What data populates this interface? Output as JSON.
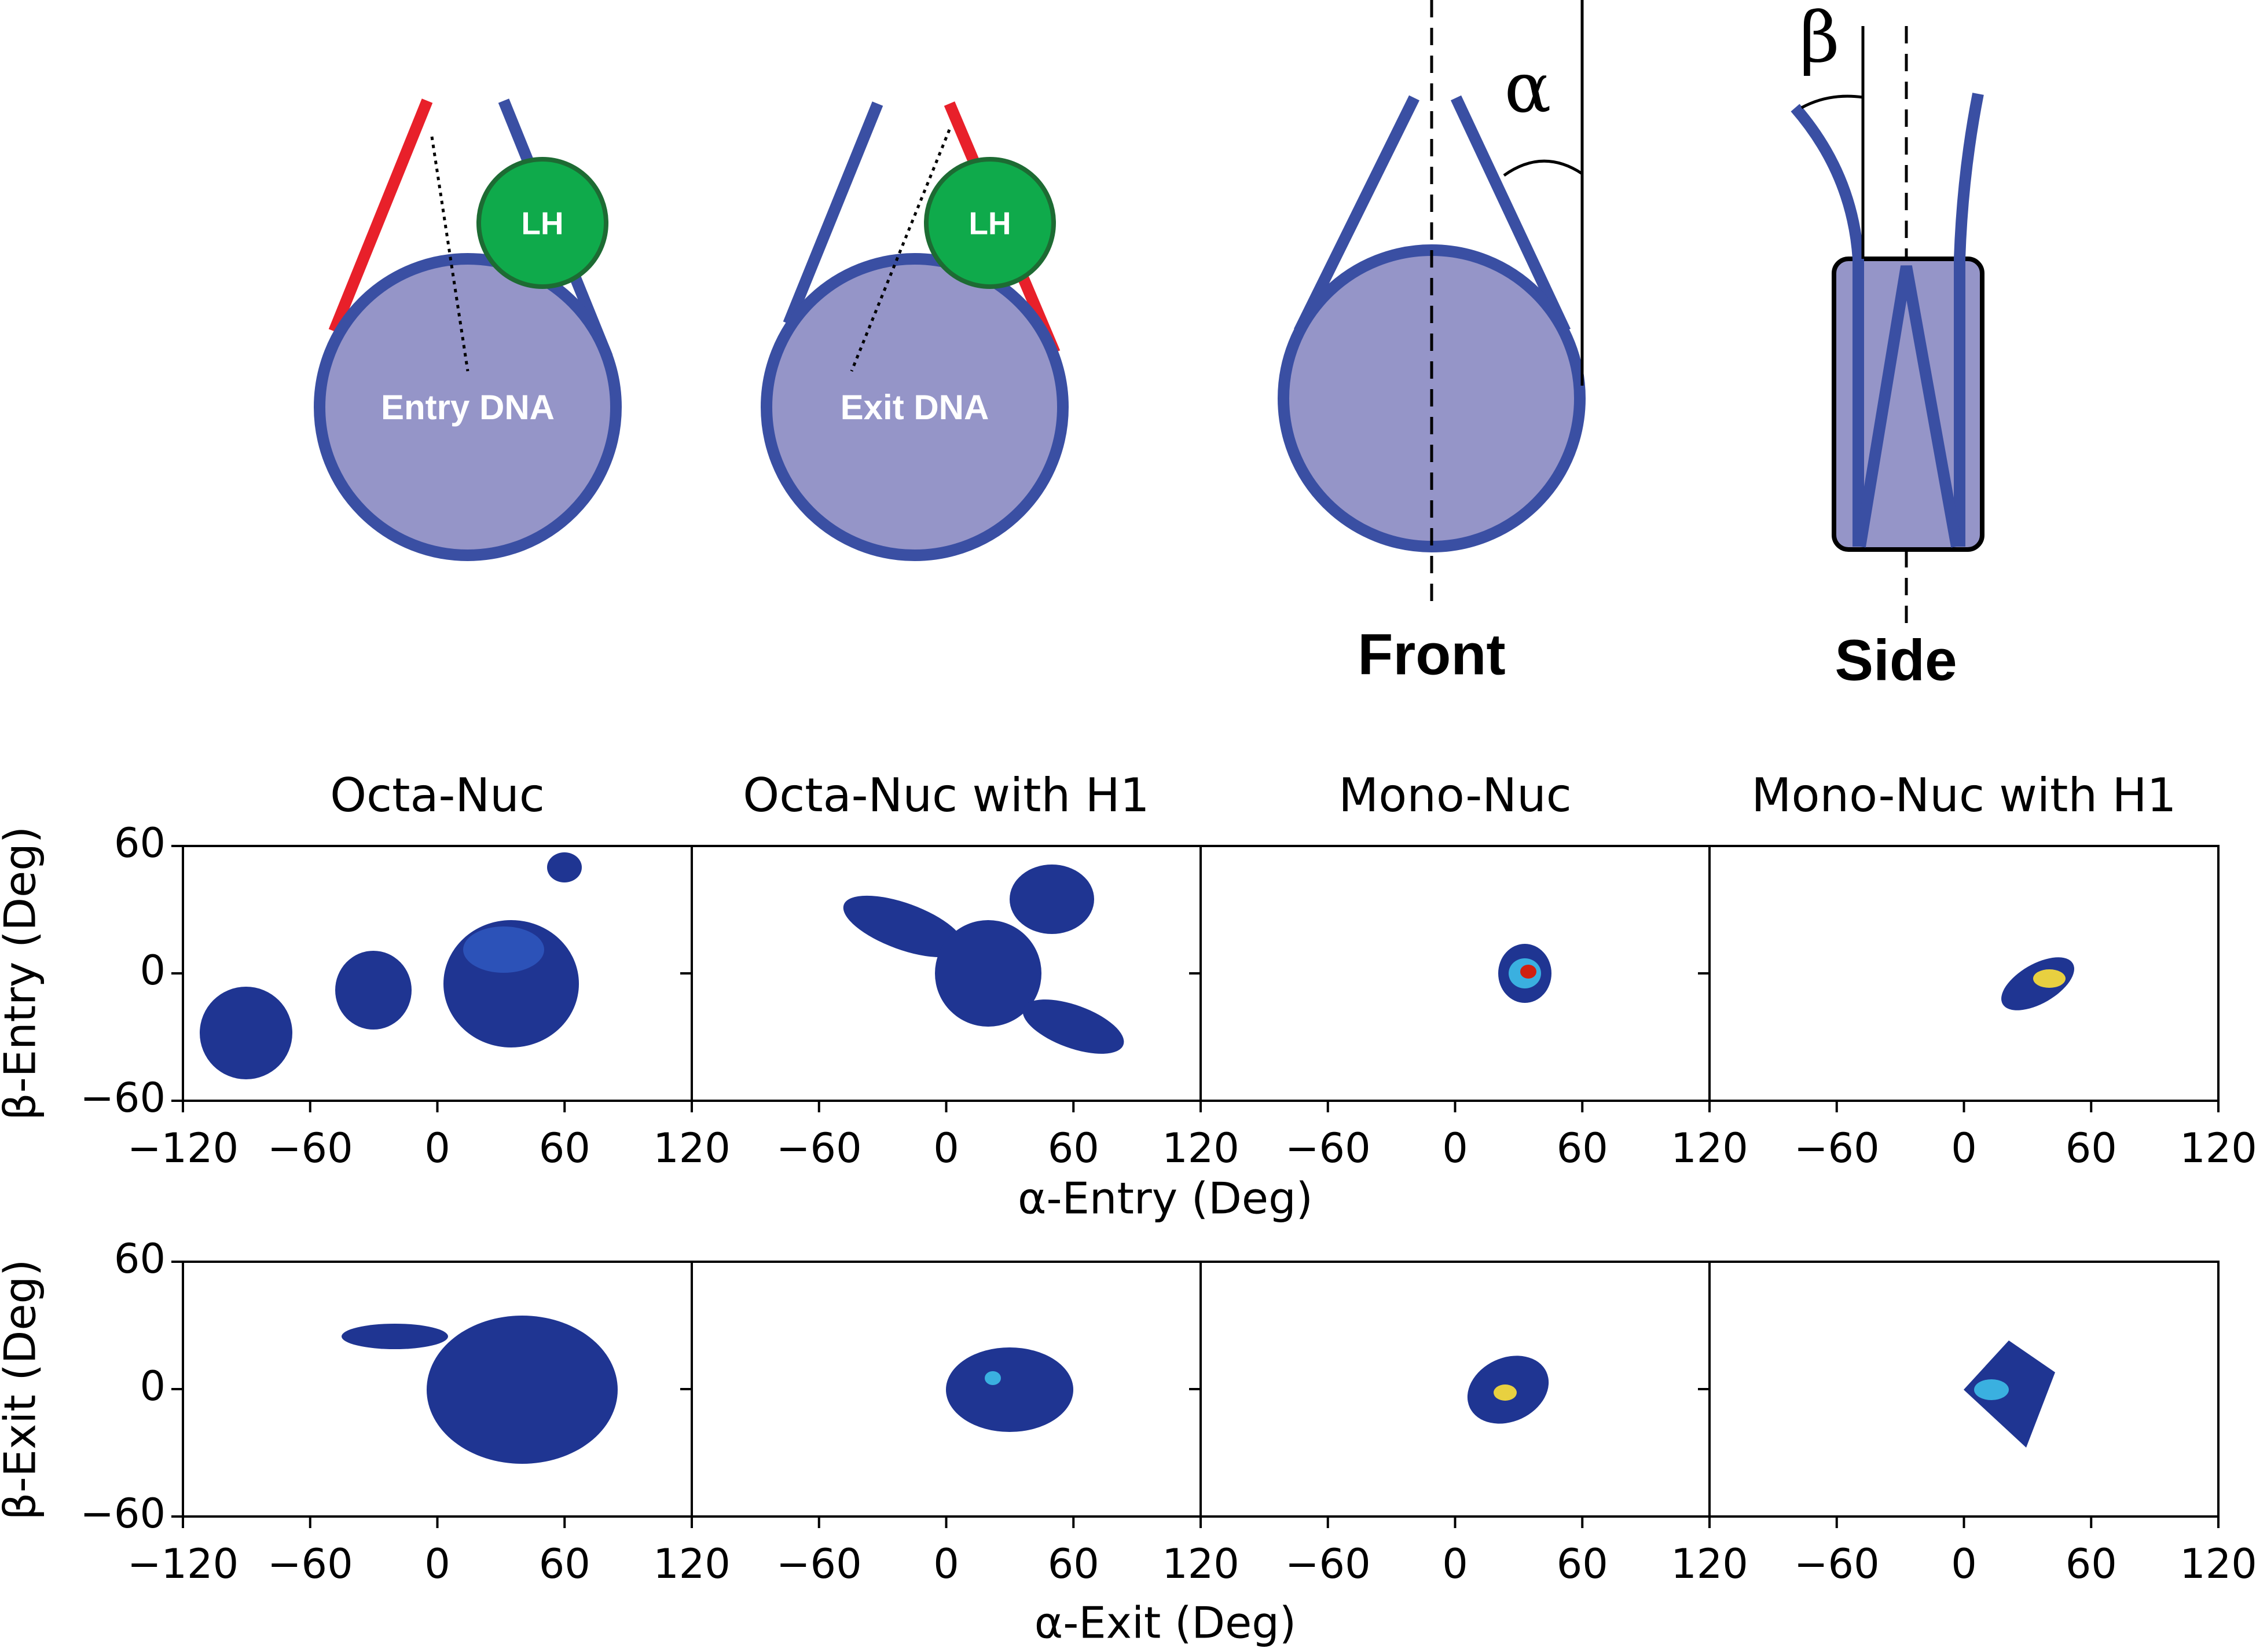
{
  "diagrams": {
    "entry": {
      "protein": "LH",
      "label": "Entry DNA"
    },
    "exit": {
      "protein": "LH",
      "label": "Exit DNA"
    },
    "front": {
      "angle": "α",
      "label": "Front"
    },
    "side": {
      "angle": "β",
      "label": "Side"
    }
  },
  "axis_labels": {
    "entry": {
      "x": "α-Entry (Deg)",
      "y": "β-Entry (Deg)"
    },
    "exit": {
      "x": "α-Exit (Deg)",
      "y": "β-Exit (Deg)"
    }
  },
  "chart_data": [
    {
      "type": "heatmap",
      "title": "Octa-Nuc",
      "xlim": [
        -120,
        120
      ],
      "ylim": [
        -60,
        60
      ],
      "xticks": [
        {
          "value": -120,
          "label": "−120"
        },
        {
          "value": -60,
          "label": "−60"
        },
        0,
        60,
        120
      ],
      "yticks": [
        {
          "value": -60,
          "label": "−60"
        },
        0,
        60
      ]
    },
    {
      "type": "heatmap",
      "title": "Octa-Nuc with H1",
      "xlim": [
        -120,
        120
      ],
      "ylim": [
        -60,
        60
      ],
      "xticks": [
        {
          "value": -60,
          "label": "−60"
        },
        0,
        60,
        120
      ]
    },
    {
      "type": "heatmap",
      "title": "Mono-Nuc",
      "xlim": [
        -120,
        120
      ],
      "ylim": [
        -60,
        60
      ],
      "xticks": [
        {
          "value": -60,
          "label": "−60"
        },
        0,
        60,
        120
      ]
    },
    {
      "type": "heatmap",
      "title": "Mono-Nuc with H1",
      "xlim": [
        -120,
        120
      ],
      "ylim": [
        -60,
        60
      ],
      "xticks": [
        {
          "value": -60,
          "label": "−60"
        },
        0,
        60,
        120
      ]
    },
    {
      "type": "heatmap",
      "xlim": [
        -120,
        120
      ],
      "ylim": [
        -60,
        60
      ],
      "xticks": [
        {
          "value": -120,
          "label": "−120"
        },
        {
          "value": -60,
          "label": "−60"
        },
        0,
        60,
        120
      ],
      "yticks": [
        {
          "value": -60,
          "label": "−60"
        },
        0,
        60
      ]
    },
    {
      "type": "heatmap",
      "xlim": [
        -120,
        120
      ],
      "ylim": [
        -60,
        60
      ],
      "xticks": [
        {
          "value": -60,
          "label": "−60"
        },
        0,
        60,
        120
      ]
    },
    {
      "type": "heatmap",
      "xlim": [
        -120,
        120
      ],
      "ylim": [
        -60,
        60
      ],
      "xticks": [
        {
          "value": -60,
          "label": "−60"
        },
        0,
        60,
        120
      ]
    },
    {
      "type": "heatmap",
      "xlim": [
        -120,
        120
      ],
      "ylim": [
        -60,
        60
      ],
      "xticks": [
        {
          "value": -60,
          "label": "−60"
        },
        0,
        60,
        120
      ]
    }
  ]
}
